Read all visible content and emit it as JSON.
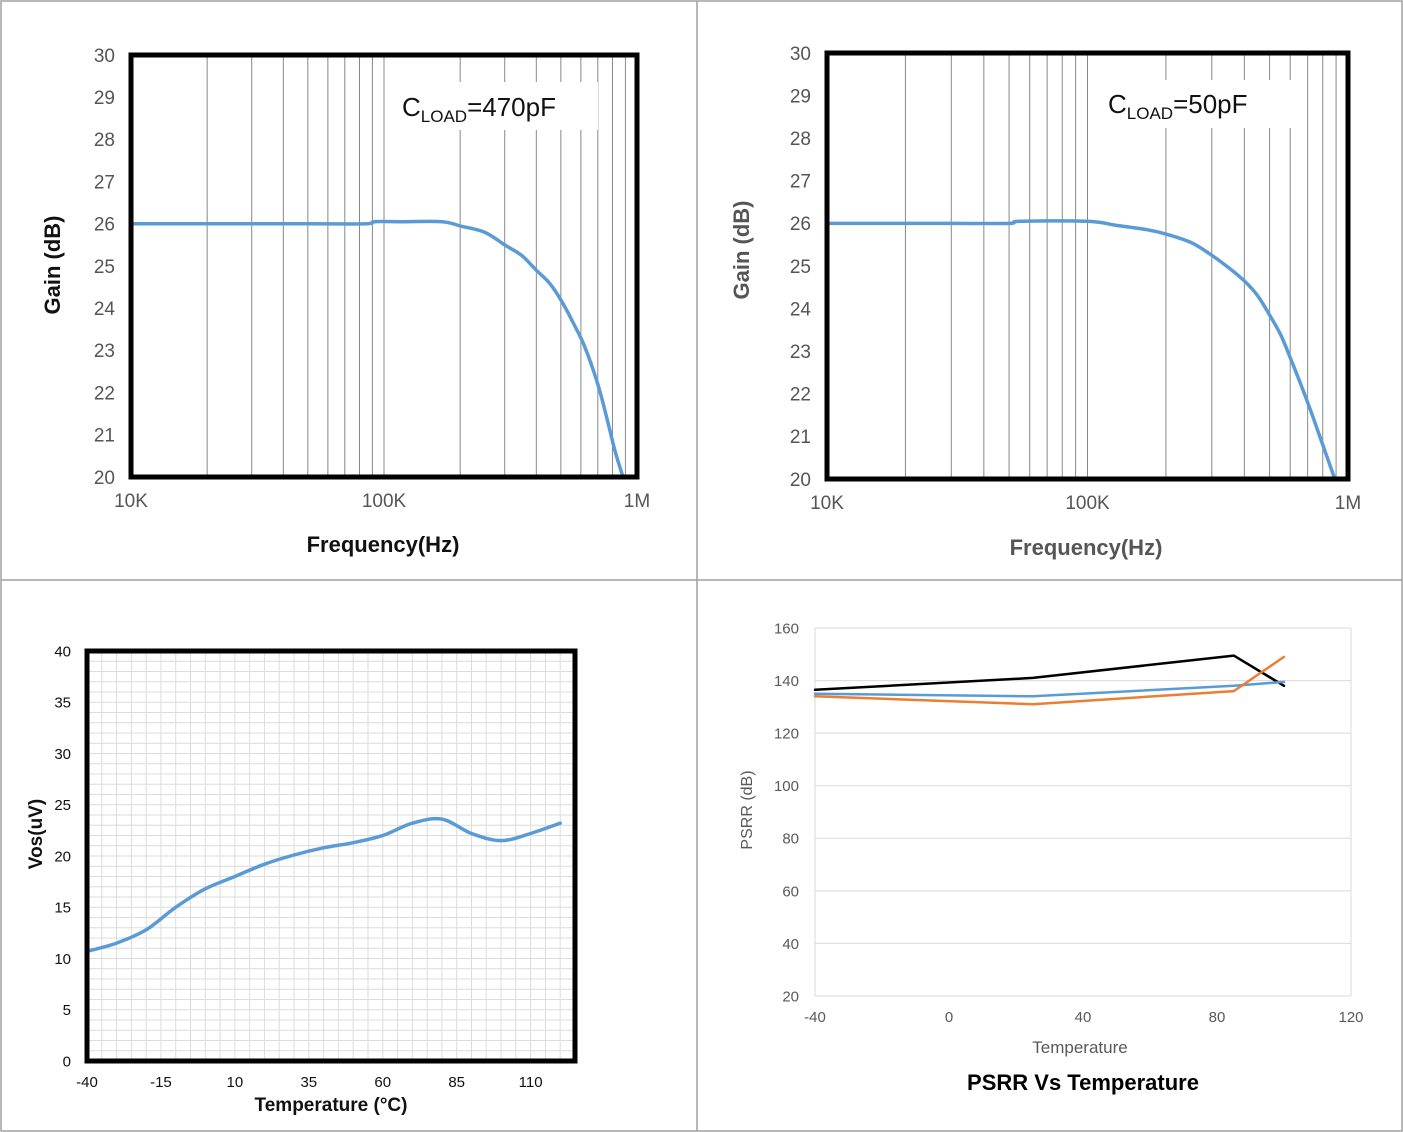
{
  "chart_data": [
    {
      "type": "line",
      "annotation": {
        "main": "C",
        "sub": "LOAD",
        "rest": "=470pF"
      },
      "xlabel": "Frequency(Hz)",
      "ylabel": "Gain  (dB)",
      "xscale": "log",
      "xlim": [
        10000,
        1000000
      ],
      "ylim": [
        20,
        30
      ],
      "x_ticks": [
        {
          "v": 10000,
          "label": "10K"
        },
        {
          "v": 100000,
          "label": "100K"
        },
        {
          "v": 1000000,
          "label": "1M"
        }
      ],
      "y_ticks": [
        20,
        21,
        22,
        23,
        24,
        25,
        26,
        27,
        28,
        29,
        30
      ],
      "grid": "vertical-log",
      "series": [
        {
          "color": "#5b9bd5",
          "x": [
            10000,
            20000,
            50000,
            85000,
            92000,
            120000,
            170000,
            200000,
            250000,
            300000,
            350000,
            400000,
            450000,
            500000,
            560000,
            620000,
            700000,
            760000,
            820000,
            880000
          ],
          "y": [
            26.0,
            26.0,
            26.0,
            26.0,
            26.05,
            26.05,
            26.05,
            25.95,
            25.8,
            25.5,
            25.25,
            24.9,
            24.6,
            24.2,
            23.65,
            23.1,
            22.2,
            21.4,
            20.6,
            20.0
          ]
        }
      ]
    },
    {
      "type": "line",
      "annotation": {
        "main": "C",
        "sub": "LOAD",
        "rest": "=50pF"
      },
      "xlabel": "Frequency(Hz)",
      "ylabel": "Gain  (dB)",
      "xscale": "log",
      "xlim": [
        10000,
        1000000
      ],
      "ylim": [
        20,
        30
      ],
      "x_ticks": [
        {
          "v": 10000,
          "label": "10K"
        },
        {
          "v": 100000,
          "label": "100K"
        },
        {
          "v": 1000000,
          "label": "1M"
        }
      ],
      "y_ticks": [
        20,
        21,
        22,
        23,
        24,
        25,
        26,
        27,
        28,
        29,
        30
      ],
      "grid": "vertical-log",
      "series": [
        {
          "color": "#5b9bd5",
          "x": [
            10000,
            30000,
            50000,
            55000,
            100000,
            130000,
            170000,
            200000,
            250000,
            300000,
            350000,
            400000,
            450000,
            500000,
            550000,
            600000,
            700000,
            800000,
            890000
          ],
          "y": [
            26.0,
            26.0,
            26.0,
            26.05,
            26.05,
            25.95,
            25.85,
            25.75,
            25.55,
            25.25,
            24.95,
            24.65,
            24.3,
            23.85,
            23.4,
            22.85,
            21.8,
            20.8,
            20.0
          ]
        }
      ]
    },
    {
      "type": "line",
      "xlabel": "Temperature (°C)",
      "ylabel": "Vos(uV)",
      "xlim": [
        -40,
        125
      ],
      "ylim": [
        0,
        40
      ],
      "x_ticks": [
        -40,
        -15,
        10,
        35,
        60,
        85,
        110
      ],
      "y_ticks": [
        0,
        5,
        10,
        15,
        20,
        25,
        30,
        35,
        40
      ],
      "grid": "minor",
      "series": [
        {
          "color": "#5b9bd5",
          "x": [
            -40,
            -30,
            -20,
            -10,
            0,
            10,
            20,
            30,
            40,
            50,
            60,
            70,
            80,
            90,
            100,
            110,
            120
          ],
          "y": [
            10.7,
            11.5,
            12.8,
            15.0,
            16.8,
            18.0,
            19.2,
            20.1,
            20.8,
            21.3,
            22.0,
            23.2,
            23.6,
            22.2,
            21.5,
            22.2,
            23.2
          ]
        }
      ]
    },
    {
      "type": "line",
      "title": "PSRR Vs Temperature",
      "xlabel": "Temperature",
      "ylabel": "PSRR (dB)",
      "xlim": [
        -40,
        120
      ],
      "ylim": [
        20,
        160
      ],
      "x_ticks": [
        -40,
        0,
        40,
        80,
        120
      ],
      "y_ticks": [
        20,
        40,
        60,
        80,
        100,
        120,
        140,
        160
      ],
      "grid": "horizontal",
      "series": [
        {
          "color": "#000000",
          "x": [
            -40,
            25,
            85,
            100
          ],
          "y": [
            136.5,
            141,
            149.5,
            138
          ]
        },
        {
          "color": "#5b9bd5",
          "x": [
            -40,
            25,
            85,
            100
          ],
          "y": [
            135,
            134,
            138,
            139.5
          ]
        },
        {
          "color": "#ed7d31",
          "x": [
            -40,
            25,
            85,
            100
          ],
          "y": [
            134,
            131,
            136,
            149
          ]
        }
      ]
    }
  ]
}
